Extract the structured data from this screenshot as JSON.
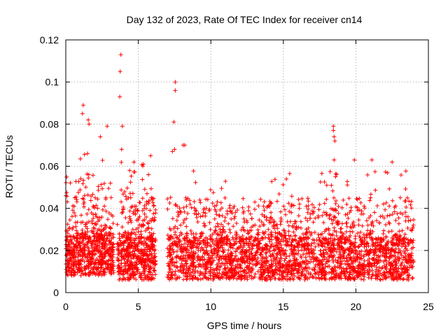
{
  "chart_data": {
    "type": "scatter",
    "title": "Day 132 of 2023, Rate Of TEC Index for receiver cn14",
    "xlabel": "GPS time / hours",
    "ylabel": "ROTI / TECUs",
    "xlim": [
      0,
      25
    ],
    "ylim": [
      0,
      0.12
    ],
    "x_ticks": [
      "0",
      "5",
      "10",
      "15",
      "20",
      "25"
    ],
    "y_ticks": [
      "0",
      "0.02",
      "0.04",
      "0.06",
      "0.08",
      "0.1",
      "0.12"
    ],
    "grid": true,
    "marker": "+",
    "marker_color": "#ff0000",
    "data_gaps_hours": [
      [
        3.3,
        3.55
      ],
      [
        6.2,
        7.0
      ]
    ],
    "notable_points": [
      {
        "x": 3.8,
        "y": 0.113
      },
      {
        "x": 3.75,
        "y": 0.105
      },
      {
        "x": 3.72,
        "y": 0.093
      },
      {
        "x": 7.55,
        "y": 0.1
      },
      {
        "x": 7.55,
        "y": 0.096
      },
      {
        "x": 1.2,
        "y": 0.089
      },
      {
        "x": 1.15,
        "y": 0.085
      },
      {
        "x": 1.55,
        "y": 0.082
      },
      {
        "x": 1.6,
        "y": 0.08
      },
      {
        "x": 7.45,
        "y": 0.081
      },
      {
        "x": 3.9,
        "y": 0.079
      },
      {
        "x": 2.85,
        "y": 0.079
      },
      {
        "x": 18.45,
        "y": 0.079
      },
      {
        "x": 18.45,
        "y": 0.077
      },
      {
        "x": 18.5,
        "y": 0.074
      },
      {
        "x": 18.55,
        "y": 0.072
      },
      {
        "x": 8.1,
        "y": 0.07
      },
      {
        "x": 8.2,
        "y": 0.07
      },
      {
        "x": 7.35,
        "y": 0.067
      },
      {
        "x": 7.5,
        "y": 0.068
      },
      {
        "x": 3.85,
        "y": 0.068
      },
      {
        "x": 5.85,
        "y": 0.065
      },
      {
        "x": 1.5,
        "y": 0.066
      },
      {
        "x": 18.5,
        "y": 0.063
      },
      {
        "x": 21.1,
        "y": 0.063
      },
      {
        "x": 19.9,
        "y": 0.063
      },
      {
        "x": 22.5,
        "y": 0.062
      },
      {
        "x": 4.7,
        "y": 0.062
      },
      {
        "x": 5.35,
        "y": 0.061
      },
      {
        "x": 0.0,
        "y": 0.046
      }
    ],
    "series": [
      {
        "name": "",
        "segments": [
          {
            "x_from": 0.0,
            "x_to": 3.3,
            "y_base_min": 0.008,
            "y_base_max": 0.028,
            "y_max": 0.075,
            "count": 700
          },
          {
            "x_from": 3.55,
            "x_to": 6.2,
            "y_base_min": 0.006,
            "y_base_max": 0.026,
            "y_max": 0.062,
            "count": 560
          },
          {
            "x_from": 7.0,
            "x_to": 24.0,
            "y_base_min": 0.006,
            "y_base_max": 0.026,
            "y_max": 0.058,
            "count": 2700
          }
        ]
      }
    ]
  }
}
